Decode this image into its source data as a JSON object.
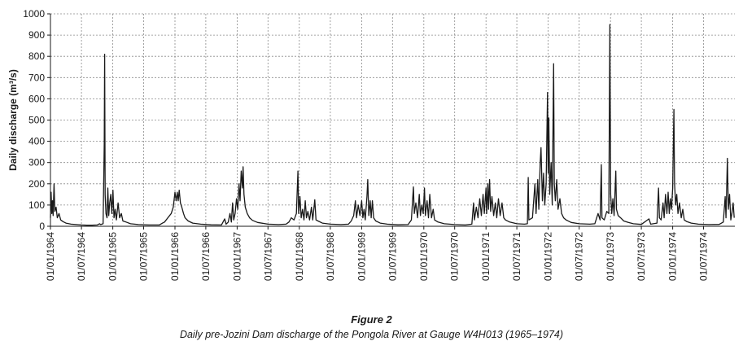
{
  "figure": {
    "title": "Figure 2",
    "caption": "Daily pre-Jozini Dam discharge of the Pongola River at Gauge W4H013 (1965–1974)"
  },
  "chart_data": {
    "type": "line",
    "ylabel": "Daily discharge (m³/s)",
    "xlabel": "",
    "ylim": [
      0,
      1000
    ],
    "yticks": [
      0,
      100,
      200,
      300,
      400,
      500,
      600,
      700,
      800,
      900,
      1000
    ],
    "xlim": [
      "1964-01-01",
      "1975-01-01"
    ],
    "xticks": [
      "01/01/1964",
      "01/07/1964",
      "01/01/1965",
      "01/07/1965",
      "01/01/1966",
      "01/07/1966",
      "01/01/1967",
      "01/07/1967",
      "01/01/1968",
      "01/07/1968",
      "01/01/1969",
      "01/07/1969",
      "01/01/1970",
      "01/07/1970",
      "01/01/1971",
      "01/07/1971",
      "01/01/1972",
      "01/07/1972",
      "01/01/1973",
      "01/07/1973",
      "01/01/1974",
      "01/07/1974"
    ],
    "grid": true,
    "line_color": "#1a1a1a",
    "series": [
      {
        "points": [
          [
            "1964-01-01",
            40
          ],
          [
            "1964-01-05",
            160
          ],
          [
            "1964-01-09",
            60
          ],
          [
            "1964-01-13",
            120
          ],
          [
            "1964-01-17",
            50
          ],
          [
            "1964-01-22",
            200
          ],
          [
            "1964-01-27",
            70
          ],
          [
            "1964-02-03",
            90
          ],
          [
            "1964-02-10",
            40
          ],
          [
            "1964-02-20",
            60
          ],
          [
            "1964-03-01",
            30
          ],
          [
            "1964-03-15",
            22
          ],
          [
            "1964-04-01",
            15
          ],
          [
            "1964-05-01",
            10
          ],
          [
            "1964-06-01",
            8
          ],
          [
            "1964-07-01",
            6
          ],
          [
            "1964-08-01",
            5
          ],
          [
            "1964-09-01",
            5
          ],
          [
            "1964-10-01",
            6
          ],
          [
            "1964-10-15",
            12
          ],
          [
            "1964-10-22",
            8
          ],
          [
            "1964-11-05",
            12
          ],
          [
            "1964-11-12",
            390
          ],
          [
            "1964-11-14",
            810
          ],
          [
            "1964-11-17",
            150
          ],
          [
            "1964-11-22",
            60
          ],
          [
            "1964-11-28",
            40
          ],
          [
            "1964-12-03",
            180
          ],
          [
            "1964-12-08",
            50
          ],
          [
            "1964-12-14",
            110
          ],
          [
            "1964-12-20",
            150
          ],
          [
            "1964-12-26",
            60
          ],
          [
            "1965-01-02",
            170
          ],
          [
            "1965-01-08",
            40
          ],
          [
            "1965-01-15",
            80
          ],
          [
            "1965-01-22",
            30
          ],
          [
            "1965-02-01",
            110
          ],
          [
            "1965-02-10",
            40
          ],
          [
            "1965-02-20",
            60
          ],
          [
            "1965-03-01",
            25
          ],
          [
            "1965-03-20",
            20
          ],
          [
            "1965-04-15",
            12
          ],
          [
            "1965-06-01",
            8
          ],
          [
            "1965-08-01",
            6
          ],
          [
            "1965-10-01",
            6
          ],
          [
            "1965-10-20",
            15
          ],
          [
            "1965-11-01",
            20
          ],
          [
            "1965-11-20",
            40
          ],
          [
            "1965-12-10",
            60
          ],
          [
            "1965-12-22",
            90
          ],
          [
            "1966-01-01",
            160
          ],
          [
            "1966-01-08",
            120
          ],
          [
            "1966-01-15",
            160
          ],
          [
            "1966-01-20",
            120
          ],
          [
            "1966-01-26",
            170
          ],
          [
            "1966-02-02",
            110
          ],
          [
            "1966-02-10",
            90
          ],
          [
            "1966-02-20",
            60
          ],
          [
            "1966-03-01",
            40
          ],
          [
            "1966-03-20",
            25
          ],
          [
            "1966-04-15",
            15
          ],
          [
            "1966-06-01",
            10
          ],
          [
            "1966-08-01",
            7
          ],
          [
            "1966-10-01",
            6
          ],
          [
            "1966-10-20",
            35
          ],
          [
            "1966-10-28",
            10
          ],
          [
            "1966-11-10",
            20
          ],
          [
            "1966-11-20",
            60
          ],
          [
            "1966-11-28",
            20
          ],
          [
            "1966-12-05",
            110
          ],
          [
            "1966-12-12",
            30
          ],
          [
            "1966-12-20",
            60
          ],
          [
            "1966-12-28",
            130
          ],
          [
            "1967-01-05",
            80
          ],
          [
            "1967-01-12",
            200
          ],
          [
            "1967-01-18",
            120
          ],
          [
            "1967-01-25",
            260
          ],
          [
            "1967-02-01",
            180
          ],
          [
            "1967-02-05",
            280
          ],
          [
            "1967-02-10",
            150
          ],
          [
            "1967-02-18",
            90
          ],
          [
            "1967-03-01",
            60
          ],
          [
            "1967-03-15",
            40
          ],
          [
            "1967-04-01",
            28
          ],
          [
            "1967-05-01",
            18
          ],
          [
            "1967-07-01",
            10
          ],
          [
            "1967-09-01",
            8
          ],
          [
            "1967-10-15",
            10
          ],
          [
            "1967-11-01",
            20
          ],
          [
            "1967-11-15",
            40
          ],
          [
            "1967-12-01",
            30
          ],
          [
            "1967-12-15",
            60
          ],
          [
            "1967-12-24",
            260
          ],
          [
            "1967-12-28",
            60
          ],
          [
            "1968-01-05",
            140
          ],
          [
            "1968-01-12",
            40
          ],
          [
            "1968-01-20",
            80
          ],
          [
            "1968-01-28",
            30
          ],
          [
            "1968-02-05",
            120
          ],
          [
            "1968-02-12",
            40
          ],
          [
            "1968-02-20",
            70
          ],
          [
            "1968-03-01",
            30
          ],
          [
            "1968-03-12",
            90
          ],
          [
            "1968-03-20",
            30
          ],
          [
            "1968-04-01",
            125
          ],
          [
            "1968-04-08",
            30
          ],
          [
            "1968-04-20",
            25
          ],
          [
            "1968-05-15",
            15
          ],
          [
            "1968-07-01",
            10
          ],
          [
            "1968-09-01",
            8
          ],
          [
            "1968-10-15",
            10
          ],
          [
            "1968-11-01",
            25
          ],
          [
            "1968-11-15",
            50
          ],
          [
            "1968-11-25",
            120
          ],
          [
            "1968-12-02",
            40
          ],
          [
            "1968-12-12",
            100
          ],
          [
            "1968-12-22",
            50
          ],
          [
            "1969-01-01",
            120
          ],
          [
            "1969-01-08",
            40
          ],
          [
            "1969-01-15",
            80
          ],
          [
            "1969-01-22",
            30
          ],
          [
            "1969-02-01",
            140
          ],
          [
            "1969-02-06",
            220
          ],
          [
            "1969-02-12",
            50
          ],
          [
            "1969-02-20",
            120
          ],
          [
            "1969-02-26",
            40
          ],
          [
            "1969-03-05",
            120
          ],
          [
            "1969-03-12",
            40
          ],
          [
            "1969-03-25",
            25
          ],
          [
            "1969-04-20",
            15
          ],
          [
            "1969-06-01",
            10
          ],
          [
            "1969-08-01",
            7
          ],
          [
            "1969-10-01",
            8
          ],
          [
            "1969-10-20",
            30
          ],
          [
            "1969-11-01",
            185
          ],
          [
            "1969-11-06",
            60
          ],
          [
            "1969-11-15",
            110
          ],
          [
            "1969-11-25",
            40
          ],
          [
            "1969-12-05",
            150
          ],
          [
            "1969-12-12",
            50
          ],
          [
            "1969-12-20",
            100
          ],
          [
            "1969-12-28",
            60
          ],
          [
            "1970-01-05",
            180
          ],
          [
            "1970-01-10",
            50
          ],
          [
            "1970-01-20",
            120
          ],
          [
            "1970-01-28",
            40
          ],
          [
            "1970-02-05",
            150
          ],
          [
            "1970-02-15",
            40
          ],
          [
            "1970-02-25",
            80
          ],
          [
            "1970-03-05",
            30
          ],
          [
            "1970-03-25",
            20
          ],
          [
            "1970-05-01",
            12
          ],
          [
            "1970-07-01",
            8
          ],
          [
            "1970-09-01",
            6
          ],
          [
            "1970-10-10",
            10
          ],
          [
            "1970-10-20",
            110
          ],
          [
            "1970-10-25",
            30
          ],
          [
            "1970-11-05",
            90
          ],
          [
            "1970-11-15",
            40
          ],
          [
            "1970-11-25",
            130
          ],
          [
            "1970-12-05",
            50
          ],
          [
            "1970-12-15",
            150
          ],
          [
            "1970-12-22",
            60
          ],
          [
            "1971-01-01",
            180
          ],
          [
            "1971-01-05",
            60
          ],
          [
            "1971-01-12",
            200
          ],
          [
            "1971-01-16",
            80
          ],
          [
            "1971-01-22",
            220
          ],
          [
            "1971-01-28",
            70
          ],
          [
            "1971-02-05",
            140
          ],
          [
            "1971-02-15",
            50
          ],
          [
            "1971-02-25",
            110
          ],
          [
            "1971-03-05",
            40
          ],
          [
            "1971-03-15",
            130
          ],
          [
            "1971-03-25",
            50
          ],
          [
            "1971-04-05",
            110
          ],
          [
            "1971-04-15",
            40
          ],
          [
            "1971-04-25",
            30
          ],
          [
            "1971-05-20",
            20
          ],
          [
            "1971-07-01",
            12
          ],
          [
            "1971-08-15",
            10
          ],
          [
            "1971-09-01",
            12
          ],
          [
            "1971-09-06",
            230
          ],
          [
            "1971-09-10",
            30
          ],
          [
            "1971-10-01",
            40
          ],
          [
            "1971-10-15",
            200
          ],
          [
            "1971-10-22",
            60
          ],
          [
            "1971-11-01",
            220
          ],
          [
            "1971-11-07",
            80
          ],
          [
            "1971-11-15",
            300
          ],
          [
            "1971-11-20",
            370
          ],
          [
            "1971-11-28",
            120
          ],
          [
            "1971-12-05",
            250
          ],
          [
            "1971-12-12",
            100
          ],
          [
            "1971-12-20",
            200
          ],
          [
            "1971-12-28",
            630
          ],
          [
            "1972-01-01",
            250
          ],
          [
            "1972-01-05",
            510
          ],
          [
            "1972-01-10",
            150
          ],
          [
            "1972-01-18",
            300
          ],
          [
            "1972-01-25",
            100
          ],
          [
            "1972-02-02",
            765
          ],
          [
            "1972-02-06",
            200
          ],
          [
            "1972-02-12",
            120
          ],
          [
            "1972-02-20",
            220
          ],
          [
            "1972-02-28",
            80
          ],
          [
            "1972-03-10",
            130
          ],
          [
            "1972-03-20",
            60
          ],
          [
            "1972-04-01",
            40
          ],
          [
            "1972-04-15",
            30
          ],
          [
            "1972-05-15",
            18
          ],
          [
            "1972-07-01",
            12
          ],
          [
            "1972-09-01",
            10
          ],
          [
            "1972-10-01",
            12
          ],
          [
            "1972-10-20",
            60
          ],
          [
            "1972-11-01",
            30
          ],
          [
            "1972-11-08",
            290
          ],
          [
            "1972-11-12",
            40
          ],
          [
            "1972-11-25",
            30
          ],
          [
            "1972-12-10",
            70
          ],
          [
            "1972-12-22",
            60
          ],
          [
            "1972-12-28",
            950
          ],
          [
            "1973-01-02",
            150
          ],
          [
            "1973-01-08",
            60
          ],
          [
            "1973-01-15",
            130
          ],
          [
            "1973-01-22",
            50
          ],
          [
            "1973-02-01",
            260
          ],
          [
            "1973-02-05",
            80
          ],
          [
            "1973-02-15",
            50
          ],
          [
            "1973-03-01",
            40
          ],
          [
            "1973-03-20",
            25
          ],
          [
            "1973-04-15",
            18
          ],
          [
            "1973-05-15",
            12
          ],
          [
            "1973-07-01",
            9
          ],
          [
            "1973-08-15",
            35
          ],
          [
            "1973-08-25",
            10
          ],
          [
            "1973-10-01",
            15
          ],
          [
            "1973-10-10",
            180
          ],
          [
            "1973-10-15",
            40
          ],
          [
            "1973-10-25",
            30
          ],
          [
            "1973-11-05",
            110
          ],
          [
            "1973-11-12",
            40
          ],
          [
            "1973-11-20",
            150
          ],
          [
            "1973-11-28",
            60
          ],
          [
            "1973-12-05",
            160
          ],
          [
            "1973-12-12",
            60
          ],
          [
            "1973-12-18",
            130
          ],
          [
            "1973-12-25",
            80
          ],
          [
            "1974-01-01",
            180
          ],
          [
            "1974-01-05",
            380
          ],
          [
            "1974-01-08",
            550
          ],
          [
            "1974-01-12",
            200
          ],
          [
            "1974-01-18",
            100
          ],
          [
            "1974-01-25",
            150
          ],
          [
            "1974-02-01",
            60
          ],
          [
            "1974-02-10",
            110
          ],
          [
            "1974-02-20",
            40
          ],
          [
            "1974-03-01",
            80
          ],
          [
            "1974-03-10",
            30
          ],
          [
            "1974-03-25",
            22
          ],
          [
            "1974-04-20",
            15
          ],
          [
            "1974-06-01",
            10
          ],
          [
            "1974-08-01",
            8
          ],
          [
            "1974-10-01",
            9
          ],
          [
            "1974-10-25",
            20
          ],
          [
            "1974-11-05",
            140
          ],
          [
            "1974-11-10",
            40
          ],
          [
            "1974-11-18",
            320
          ],
          [
            "1974-11-24",
            80
          ],
          [
            "1974-12-01",
            150
          ],
          [
            "1974-12-08",
            30
          ],
          [
            "1974-12-15",
            60
          ],
          [
            "1974-12-22",
            110
          ],
          [
            "1974-12-28",
            40
          ]
        ]
      }
    ]
  }
}
